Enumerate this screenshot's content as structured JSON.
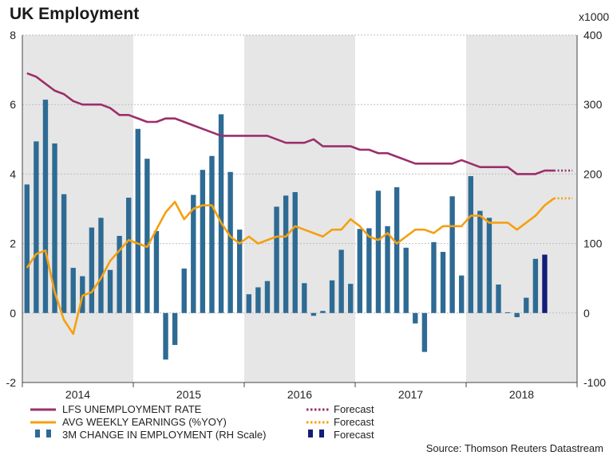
{
  "chart_data": {
    "type": "combo",
    "title": "UK Employment",
    "left_axis": {
      "ylim": [
        -2,
        8
      ],
      "ticks": [
        -2,
        0,
        2,
        4,
        6,
        8
      ]
    },
    "right_axis": {
      "unit": "x1000",
      "ylim": [
        -100,
        400
      ],
      "ticks": [
        -100,
        0,
        100,
        200,
        300,
        400
      ]
    },
    "x_axis": {
      "years": [
        "2014",
        "2015",
        "2016",
        "2017",
        "2018"
      ],
      "shaded_years": [
        "2014",
        "2016",
        "2018"
      ]
    },
    "series": [
      {
        "name": "LFS UNEMPLOYMENT RATE",
        "kind": "line",
        "axis": "left",
        "color": "#9b2f6a",
        "values": [
          6.9,
          6.8,
          6.6,
          6.4,
          6.3,
          6.1,
          6.0,
          6.0,
          6.0,
          5.9,
          5.7,
          5.7,
          5.6,
          5.5,
          5.5,
          5.6,
          5.6,
          5.5,
          5.4,
          5.3,
          5.2,
          5.1,
          5.1,
          5.1,
          5.1,
          5.1,
          5.1,
          5.0,
          4.9,
          4.9,
          4.9,
          5.0,
          4.8,
          4.8,
          4.8,
          4.8,
          4.7,
          4.7,
          4.6,
          4.6,
          4.5,
          4.4,
          4.3,
          4.3,
          4.3,
          4.3,
          4.3,
          4.4,
          4.3,
          4.2,
          4.2,
          4.2,
          4.2,
          4.0,
          4.0,
          4.0,
          4.1,
          4.1
        ],
        "forecast": [
          4.1,
          4.1
        ]
      },
      {
        "name": "AVG WEEKLY EARNINGS (%YOY)",
        "kind": "line",
        "axis": "left",
        "color": "#f5a00f",
        "values": [
          1.3,
          1.7,
          1.8,
          0.6,
          -0.2,
          -0.6,
          0.5,
          0.6,
          1.0,
          1.5,
          1.8,
          2.1,
          2.0,
          1.9,
          2.4,
          2.9,
          3.2,
          2.7,
          3.0,
          3.1,
          3.1,
          2.6,
          2.2,
          2.0,
          2.2,
          2.0,
          2.1,
          2.2,
          2.2,
          2.5,
          2.4,
          2.3,
          2.2,
          2.4,
          2.4,
          2.7,
          2.5,
          2.2,
          2.1,
          2.3,
          2.0,
          2.2,
          2.4,
          2.4,
          2.3,
          2.5,
          2.5,
          2.5,
          2.8,
          2.8,
          2.6,
          2.6,
          2.6,
          2.4,
          2.6,
          2.8,
          3.1,
          3.3
        ],
        "forecast": [
          3.3,
          3.3
        ]
      },
      {
        "name": "3M CHANGE IN EMPLOYMENT (RH Scale)",
        "kind": "bar",
        "axis": "right",
        "color": "#2e6b94",
        "values": [
          185,
          247,
          307,
          244,
          171,
          65,
          53,
          123,
          137,
          62,
          111,
          166,
          265,
          222,
          118,
          -67,
          -46,
          64,
          170,
          206,
          226,
          286,
          203,
          120,
          27,
          37,
          46,
          153,
          169,
          174,
          43,
          -4,
          3,
          47,
          91,
          42,
          121,
          122,
          176,
          125,
          181,
          94,
          -15,
          -56,
          102,
          88,
          168,
          54,
          197,
          147,
          137,
          41,
          1,
          -6,
          22,
          78
        ],
        "forecast": [
          84
        ]
      }
    ],
    "legend": {
      "unemployment": "LFS UNEMPLOYMENT RATE",
      "earnings": "AVG WEEKLY EARNINGS (%YOY)",
      "employment": "3M CHANGE IN EMPLOYMENT (RH Scale)",
      "forecast_label": "Forecast"
    },
    "forecast_colors": {
      "unemployment": "#9b2f6a",
      "earnings": "#f5a00f",
      "employment": "#141c7a"
    },
    "source": "Source: Thomson Reuters Datastream"
  }
}
